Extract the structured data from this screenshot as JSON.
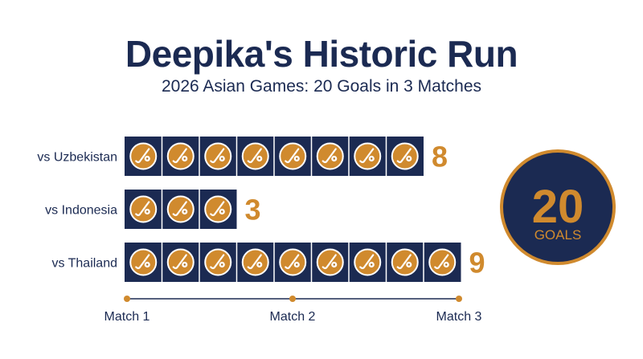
{
  "chart_data": {
    "type": "bar",
    "title": "Deepika's Historic Run",
    "subtitle": "2026 Asian Games: 20 Goals in 3 Matches",
    "categories": [
      "vs Uzbekistan",
      "vs Indonesia",
      "vs Thailand"
    ],
    "values": [
      8,
      3,
      9
    ],
    "value_labels": [
      "8",
      "3",
      "9"
    ],
    "timeline_labels": [
      "Match 1",
      "Match 2",
      "Match 3"
    ],
    "total": {
      "value": "20",
      "label": "GOALS"
    },
    "icon": "hockey-ball-stick-icon"
  },
  "colors": {
    "navy": "#1b2a52",
    "gold": "#d08a2e",
    "gold_dark": "#a86a1c"
  }
}
